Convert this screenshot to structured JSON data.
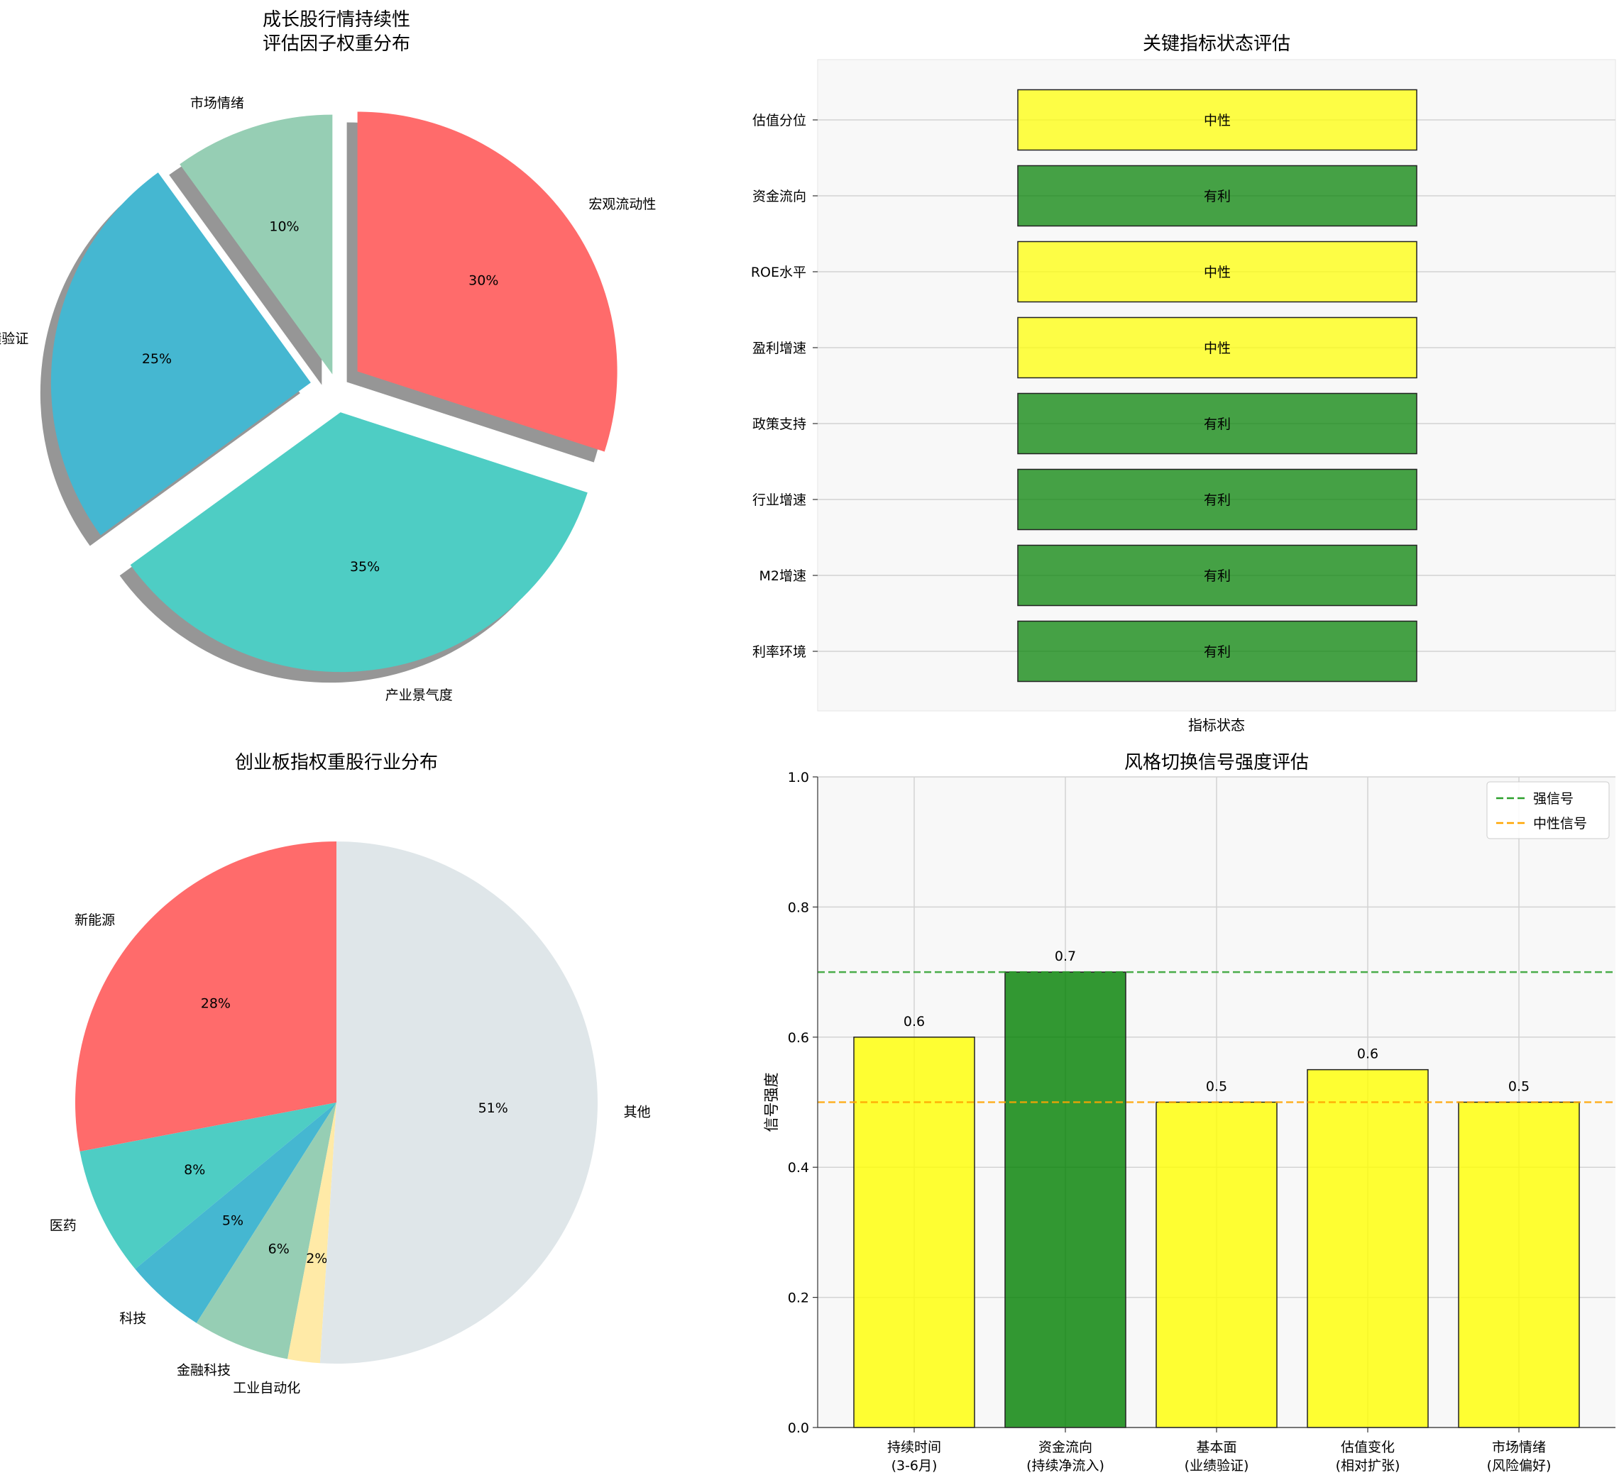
{
  "chart_data": [
    {
      "type": "pie",
      "title": [
        "成长股行情持续性",
        "评估因子权重分布"
      ],
      "start_angle_deg": 90,
      "direction": "clockwise",
      "shadow": true,
      "slices": [
        {
          "label": "宏观流动性",
          "value": 30,
          "pct_text": "30%",
          "color": "#FF6B6B",
          "explode": 0.1
        },
        {
          "label": "产业景气度",
          "value": 35,
          "pct_text": "35%",
          "color": "#4ECDC4",
          "explode": 0.1
        },
        {
          "label": "业绩验证",
          "value": 25,
          "pct_text": "25%",
          "color": "#45B7D1",
          "explode": 0.1
        },
        {
          "label": "市场情绪",
          "value": 10,
          "pct_text": "10%",
          "color": "#96CEB4",
          "explode": 0.05
        }
      ]
    },
    {
      "type": "table",
      "title": "关键指标状态评估",
      "xlabel": "指标状态",
      "grid": true,
      "rows": [
        {
          "label": "估值分位",
          "status": "中性",
          "color": "#FFFF00"
        },
        {
          "label": "资金流向",
          "status": "有利",
          "color": "#008000"
        },
        {
          "label": "ROE水平",
          "status": "中性",
          "color": "#FFFF00"
        },
        {
          "label": "盈利增速",
          "status": "中性",
          "color": "#FFFF00"
        },
        {
          "label": "政策支持",
          "status": "有利",
          "color": "#008000"
        },
        {
          "label": "行业增速",
          "status": "有利",
          "color": "#008000"
        },
        {
          "label": "M2增速",
          "status": "有利",
          "color": "#008000"
        },
        {
          "label": "利率环境",
          "status": "有利",
          "color": "#008000"
        }
      ]
    },
    {
      "type": "pie",
      "title": "创业板指权重股行业分布",
      "start_angle_deg": 90,
      "direction": "counterclockwise",
      "slices": [
        {
          "label": "新能源",
          "value": 28,
          "pct_text": "28%",
          "color": "#FF6B6B"
        },
        {
          "label": "医药",
          "value": 8,
          "pct_text": "8%",
          "color": "#4ECDC4"
        },
        {
          "label": "科技",
          "value": 5,
          "pct_text": "5%",
          "color": "#45B7D1"
        },
        {
          "label": "金融科技",
          "value": 6,
          "pct_text": "6%",
          "color": "#96CEB4"
        },
        {
          "label": "工业自动化",
          "value": 2,
          "pct_text": "2%",
          "color": "#FFEAA7"
        },
        {
          "label": "其他",
          "value": 51,
          "pct_text": "51%",
          "color": "#DFE6E9"
        }
      ]
    },
    {
      "type": "bar",
      "title": "风格切换信号强度评估",
      "ylabel": "信号强度",
      "ylim": [
        0,
        1.0
      ],
      "yticks": [
        "0.0",
        "0.2",
        "0.4",
        "0.6",
        "0.8",
        "1.0"
      ],
      "grid": true,
      "categories": [
        [
          "持续时间",
          "(3-6月)"
        ],
        [
          "资金流向",
          "(持续净流入)"
        ],
        [
          "基本面",
          "(业绩验证)"
        ],
        [
          "估值变化",
          "(相对扩张)"
        ],
        [
          "市场情绪",
          "(风险偏好)"
        ]
      ],
      "values": [
        0.6,
        0.7,
        0.5,
        0.55,
        0.5
      ],
      "value_labels": [
        "0.6",
        "0.7",
        "0.5",
        "0.6",
        "0.5"
      ],
      "colors": [
        "#FFFF00",
        "#008000",
        "#FFFF00",
        "#FFFF00",
        "#FFFF00"
      ],
      "reference_lines": [
        {
          "name": "强信号",
          "value": 0.7,
          "color": "#2ca02c"
        },
        {
          "name": "中性信号",
          "value": 0.5,
          "color": "#FFA500"
        }
      ],
      "legend_position": "top-right"
    }
  ]
}
